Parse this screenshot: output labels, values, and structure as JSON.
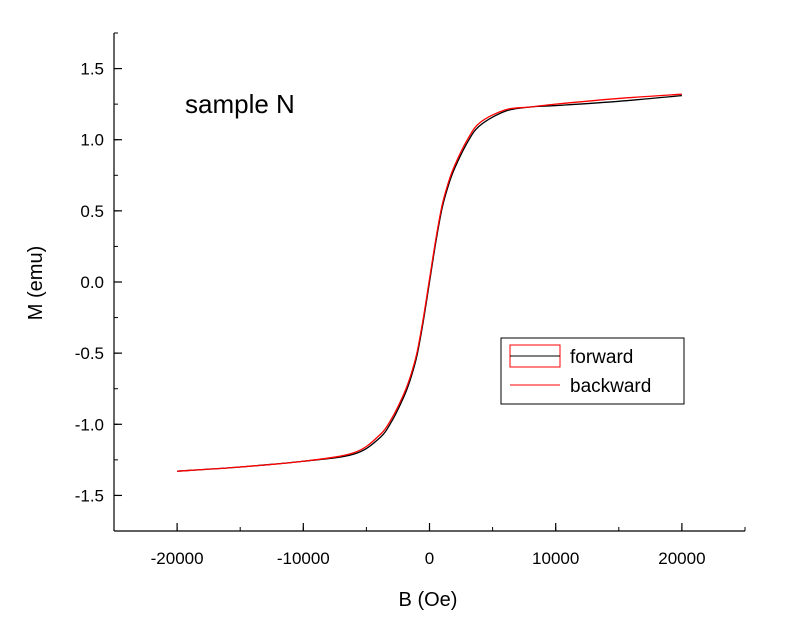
{
  "chart_data": {
    "type": "line",
    "annotation": "sample N",
    "xlabel": "B (Oe)",
    "ylabel": "M (emu)",
    "xlim": [
      -25000,
      25000
    ],
    "ylim": [
      -1.75,
      1.75
    ],
    "x_ticks": [
      -20000,
      -10000,
      0,
      10000,
      20000
    ],
    "x_tick_labels": [
      "-20000",
      "-10000",
      "0",
      "10000",
      "20000"
    ],
    "y_ticks": [
      -1.5,
      -1.0,
      -0.5,
      0.0,
      0.5,
      1.0,
      1.5
    ],
    "y_tick_labels": [
      "-1.5",
      "-1.0",
      "-0.5",
      "0.0",
      "0.5",
      "1.0",
      "1.5"
    ],
    "grid": false,
    "legend_position": "center-right",
    "series": [
      {
        "name": "forward",
        "color": "#000000",
        "x": [
          -20000,
          -15000,
          -10000,
          -6000,
          -4000,
          -3000,
          -2000,
          -1500,
          -1000,
          -500,
          0,
          500,
          1000,
          1500,
          2000,
          3000,
          4000,
          6000,
          8000,
          10000,
          15000,
          20000
        ],
        "y": [
          -1.33,
          -1.3,
          -1.26,
          -1.21,
          -1.1,
          -0.98,
          -0.8,
          -0.68,
          -0.52,
          -0.28,
          0.0,
          0.28,
          0.52,
          0.68,
          0.8,
          0.98,
          1.1,
          1.2,
          1.23,
          1.24,
          1.27,
          1.31
        ]
      },
      {
        "name": "backward",
        "color": "#ff0000",
        "x": [
          20000,
          15000,
          10000,
          8000,
          6000,
          4000,
          3000,
          2000,
          1500,
          1000,
          500,
          0,
          -500,
          -1000,
          -1500,
          -2000,
          -3000,
          -4000,
          -6000,
          -10000,
          -15000,
          -20000
        ],
        "y": [
          1.32,
          1.29,
          1.25,
          1.23,
          1.21,
          1.12,
          1.0,
          0.82,
          0.7,
          0.54,
          0.3,
          0.02,
          -0.26,
          -0.5,
          -0.66,
          -0.78,
          -0.96,
          -1.08,
          -1.2,
          -1.26,
          -1.3,
          -1.33
        ]
      }
    ]
  }
}
